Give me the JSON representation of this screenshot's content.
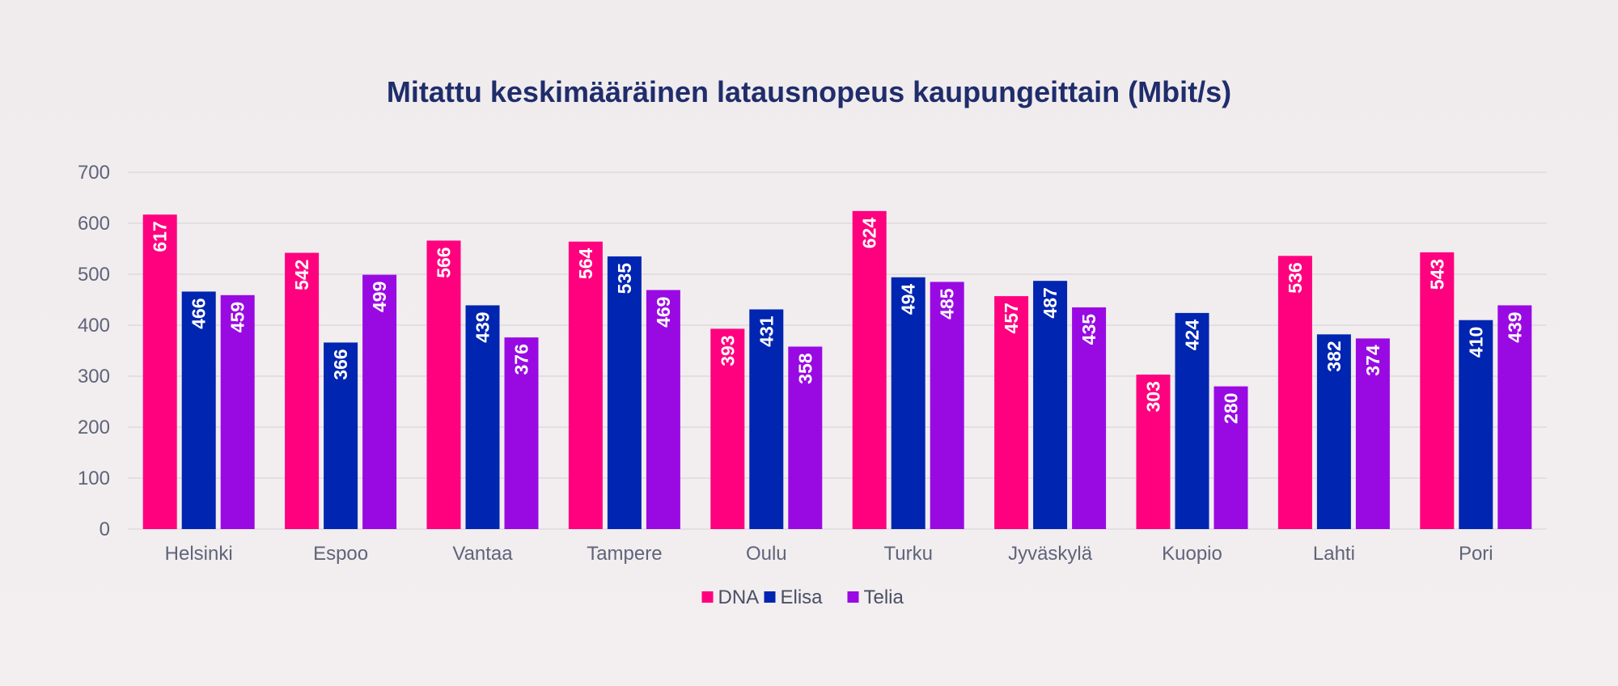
{
  "chart_data": {
    "type": "bar",
    "title": "Mitattu keskimääräinen latausnopeus kaupungeittain (Mbit/s)",
    "xlabel": "",
    "ylabel": "",
    "ylim": [
      0,
      700
    ],
    "yticks": [
      0,
      100,
      200,
      300,
      400,
      500,
      600,
      700
    ],
    "grid": true,
    "legend_position": "bottom-center",
    "categories": [
      "Helsinki",
      "Espoo",
      "Vantaa",
      "Tampere",
      "Oulu",
      "Turku",
      "Jyväskylä",
      "Kuopio",
      "Lahti",
      "Pori"
    ],
    "series": [
      {
        "name": "DNA",
        "color": "#ff007f",
        "values": [
          617,
          542,
          566,
          564,
          393,
          624,
          457,
          303,
          536,
          543
        ]
      },
      {
        "name": "Elisa",
        "color": "#0025b0",
        "values": [
          466,
          366,
          439,
          535,
          431,
          494,
          487,
          424,
          382,
          410
        ]
      },
      {
        "name": "Telia",
        "color": "#990ae3",
        "values": [
          459,
          499,
          376,
          469,
          358,
          485,
          435,
          280,
          374,
          439
        ]
      }
    ]
  }
}
